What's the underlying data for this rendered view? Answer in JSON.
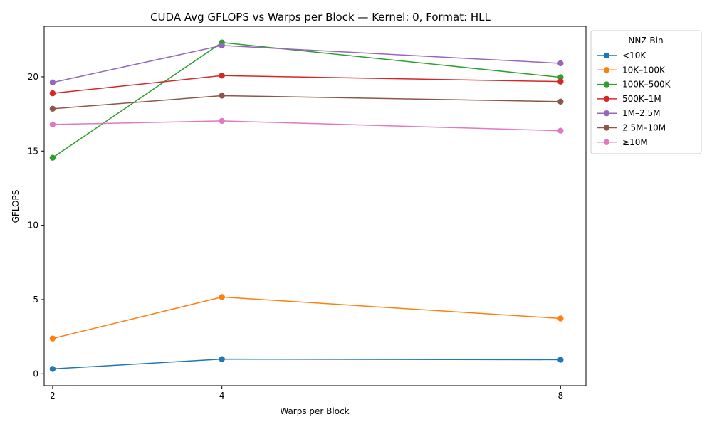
{
  "chart_data": {
    "type": "line",
    "title": "CUDA Avg GFLOPS vs Warps per Block — Kernel: 0, Format: HLL",
    "xlabel": "Warps per Block",
    "ylabel": "GFLOPS",
    "x": [
      2,
      4,
      8
    ],
    "x_tick_labels": [
      "2",
      "4",
      "8"
    ],
    "xlim": [
      1.9,
      8.3
    ],
    "ylim": [
      -0.8,
      23.4
    ],
    "y_ticks": [
      0,
      5,
      10,
      15,
      20
    ],
    "y_tick_labels": [
      "0",
      "5",
      "10",
      "15",
      "20"
    ],
    "grid": false,
    "legend": {
      "title": "NNZ Bin",
      "placement": "outside upper right"
    },
    "series": [
      {
        "name": "<10K",
        "color": "#1f77b4",
        "values": [
          0.33,
          0.99,
          0.95
        ]
      },
      {
        "name": "10K–100K",
        "color": "#ff7f0e",
        "values": [
          2.38,
          5.17,
          3.73
        ]
      },
      {
        "name": "100K–500K",
        "color": "#2ca02c",
        "values": [
          14.55,
          22.31,
          19.97
        ]
      },
      {
        "name": "500K–1M",
        "color": "#d62728",
        "values": [
          18.89,
          20.08,
          19.68
        ]
      },
      {
        "name": "1M–2.5M",
        "color": "#9467bd",
        "values": [
          19.62,
          22.11,
          20.91
        ]
      },
      {
        "name": "2.5M–10M",
        "color": "#8c564b",
        "values": [
          17.85,
          18.73,
          18.33
        ]
      },
      {
        "name": "≥10M",
        "color": "#e377c2",
        "values": [
          16.79,
          17.03,
          16.37
        ]
      }
    ]
  }
}
